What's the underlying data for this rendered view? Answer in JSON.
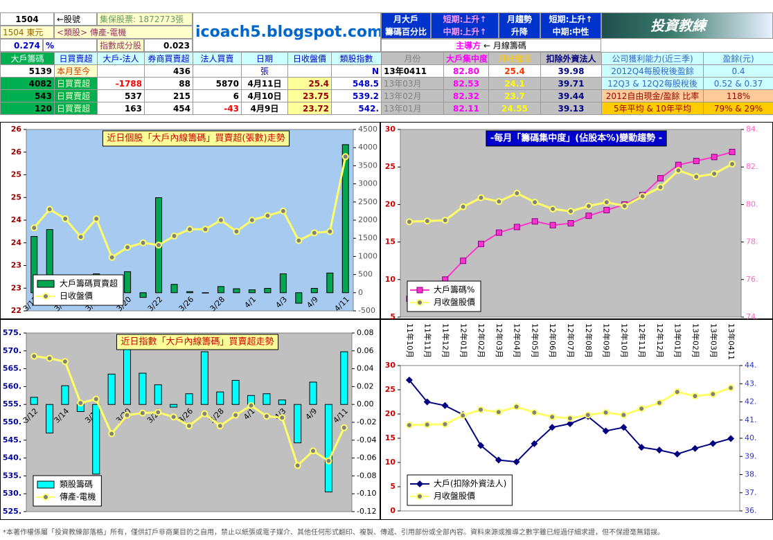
{
  "header": {
    "stock_code": "1504",
    "stock_code_note": "←股號",
    "custody_shares": "集保股票: 1872773張",
    "stock_name": "1504 東元",
    "sector": "<類股> 傳產-電機",
    "weight": "0.274",
    "weight_unit": "%",
    "index_component": "指數成分股",
    "index_weight": "0.023",
    "site": "icoach5.blogspot.com",
    "monthly_holder_label": [
      "月大戶",
      "籌碼百分比"
    ],
    "holder_trend": [
      "短期:上升↑",
      "中期:上升↑"
    ],
    "monthly_trend_label": [
      "月趨勢",
      "升降"
    ],
    "monthly_trend": [
      "短期:上升↑",
      "中期:中性"
    ],
    "logo": "投資教練",
    "leader": "主導方",
    "leader_value": "← 月線籌碼"
  },
  "table": {
    "columns": [
      "大戶籌碼",
      "日買賣超",
      "大戶-法人",
      "券商買賣超",
      "法人買賣",
      "日期",
      "日收盤價",
      "類股指數",
      "月份",
      "大戶集中度",
      "月收盤價",
      "扣除外資法人",
      "公司獲利能力(近三季)",
      "盈餘(元)"
    ],
    "rows": [
      [
        "5139",
        "本月至今",
        null,
        "436",
        null,
        "張",
        null,
        "N",
        "13年0411",
        "82.80",
        "25.4",
        "39.98",
        "2012Q4每股稅後盈餘",
        "0.4"
      ],
      [
        "4082",
        "日買賣超",
        "-1788",
        "88",
        "5870",
        "4月11日",
        "25.4",
        "548.5",
        "13年03月",
        "82.53",
        "24.1",
        "39.71",
        "12Q3 & 12Q2每股稅後",
        "0.52 & 0.37"
      ],
      [
        "543",
        "日買賣超",
        "537",
        "215",
        "6",
        "4月10日",
        "23.75",
        "539.2",
        "13年02月",
        "82.32",
        "23.7",
        "39.44",
        "2012自由現金/盈餘 比率",
        "118%"
      ],
      [
        "120",
        "日買賣超",
        "163",
        "454",
        "-43",
        "4月9日",
        "23.72",
        "542.",
        "13年01月",
        "82.11",
        "24.55",
        "39.13",
        "5年平均 & 10年平均",
        "79% & 29%"
      ]
    ]
  },
  "chart_data": [
    {
      "type": "bar-line",
      "title": "近日個股「大戶內線籌碼」買賣超(張數)走勢",
      "categories": [
        "3/12",
        null,
        "3/14",
        null,
        "3/18",
        null,
        "3/20",
        null,
        "3/22",
        null,
        "3/26",
        null,
        "3/28",
        null,
        "4/1",
        null,
        "4/3",
        null,
        "4/9",
        null,
        "4/11"
      ],
      "ylim": [
        22,
        26
      ],
      "yticks": [
        22,
        {
          "value": 22.5,
          "label": "23"
        },
        23,
        {
          "value": 23.5,
          "label": "24"
        },
        24,
        {
          "value": 24.5,
          "label": "25"
        },
        25,
        {
          "value": 25.5,
          "label": "26"
        },
        26
      ],
      "y2lim": [
        -500,
        4500
      ],
      "y2ticks": [
        -500,
        0,
        500,
        1000,
        1500,
        2000,
        2500,
        3000,
        3500,
        4000,
        4500
      ],
      "series": [
        {
          "name": "大戶籌碼買賣超",
          "type": "bar",
          "axis": "y2",
          "color": "#00a651",
          "values": [
            1550,
            1740,
            40,
            100,
            520,
            30,
            580,
            -130,
            2620,
            230,
            30,
            -10,
            170,
            110,
            80,
            120,
            520,
            -290,
            120,
            543,
            4082
          ]
        },
        {
          "name": "日收盤價",
          "type": "line",
          "color": "#ffff66",
          "marker": "circle",
          "values": [
            23.83,
            24.24,
            24.03,
            23.63,
            24.03,
            23.18,
            23.4,
            23.5,
            23.45,
            23.65,
            23.8,
            23.8,
            24.0,
            23.75,
            24.0,
            24.1,
            24.2,
            23.55,
            23.72,
            23.75,
            25.4
          ]
        }
      ],
      "legend": "lower left"
    },
    {
      "type": "line",
      "title": "-每月「籌碼集中度」(佔股本%)變動趨勢 -",
      "ylim": [
        5,
        30
      ],
      "yticks": [
        5,
        10,
        15,
        20,
        25,
        30
      ],
      "y2lim": [
        74,
        84
      ],
      "y2ticks": [
        {
          "value": 74,
          "label": "74."
        },
        {
          "value": 76,
          "label": "76."
        },
        {
          "value": 78,
          "label": "78."
        },
        {
          "value": 80,
          "label": "80."
        },
        {
          "value": 82,
          "label": "82."
        },
        {
          "value": 84,
          "label": "84."
        }
      ],
      "series": [
        {
          "name": "大戶籌碼%",
          "type": "line",
          "axis": "y2",
          "color": "#ff33cc",
          "marker": "square",
          "values": [
            74.98,
            75.4,
            76.0,
            77.0,
            77.9,
            78.5,
            78.8,
            79.1,
            78.9,
            79.0,
            79.4,
            79.7,
            80.0,
            80.5,
            81.4,
            82.11,
            82.32,
            82.53,
            82.8
          ]
        },
        {
          "name": "月收盤股價",
          "type": "line",
          "color": "#ffff66",
          "marker": "circle",
          "values": [
            17.7,
            17.8,
            17.9,
            19.7,
            20.9,
            20.4,
            21.5,
            20.3,
            19.4,
            19.1,
            19.8,
            20.3,
            19.8,
            21.1,
            22.3,
            24.55,
            23.7,
            24.1,
            25.4
          ]
        }
      ],
      "legend": "lower left"
    },
    {
      "type": "bar-line",
      "title": "近日指數「大戶內線籌碼」買賣超走勢",
      "categories": [
        "3/12",
        null,
        "3/14",
        null,
        "3/18",
        null,
        "3/20",
        null,
        "3/22",
        null,
        "3/26",
        null,
        "3/28",
        null,
        "4/1",
        null,
        "4/3",
        null,
        "4/9",
        null,
        "4/11"
      ],
      "ylim": [
        525,
        575
      ],
      "yticks": [
        {
          "value": 525,
          "label": "525."
        },
        {
          "value": 530,
          "label": "530."
        },
        {
          "value": 535,
          "label": "535."
        },
        {
          "value": 540,
          "label": "540."
        },
        {
          "value": 545,
          "label": "545."
        },
        {
          "value": 550,
          "label": "550."
        },
        {
          "value": 555,
          "label": "555."
        },
        {
          "value": 560,
          "label": "560."
        },
        {
          "value": 565,
          "label": "565."
        },
        {
          "value": 570,
          "label": "570."
        },
        {
          "value": 575,
          "label": "575."
        }
      ],
      "y2lim": [
        -0.12,
        0.08
      ],
      "y2ticks": [
        -0.12,
        {
          "value": -0.1,
          "label": "-0.10"
        },
        -0.08,
        -0.06,
        -0.04,
        -0.02,
        {
          "value": 0,
          "label": "0.00"
        },
        0.02,
        0.04,
        0.06,
        0.08
      ],
      "series": [
        {
          "name": "類股籌碼",
          "type": "bar",
          "axis": "y2",
          "color": "#00ffff",
          "values": [
            0.008,
            -0.032,
            0.021,
            -0.008,
            -0.078,
            0.034,
            0.069,
            0.035,
            0.022,
            -0.003,
            0.012,
            0.059,
            0.014,
            0.027,
            0.01,
            0.012,
            0.005,
            -0.043,
            0.025,
            -0.098,
            0.059
          ]
        },
        {
          "name": "傳產-電機",
          "type": "line",
          "color": "#ffff66",
          "marker": "circle",
          "values": [
            568.5,
            567.9,
            567,
            555.4,
            556.5,
            546.8,
            552,
            552.6,
            552.8,
            551.5,
            549,
            552.4,
            549,
            552,
            554.7,
            551.7,
            551.3,
            537.9,
            542,
            539.2,
            548.5
          ]
        }
      ],
      "legend": "lower left"
    },
    {
      "type": "line",
      "categories": [
        "11年10月",
        "11年11月",
        "11年12月",
        "12年01月",
        "12年02月",
        "12年03月",
        "12年04月",
        "12年05月",
        "12年06月",
        "12年07月",
        "12年08月",
        "12年09月",
        "12年10月",
        "12年11月",
        "12年12月",
        "13年01月",
        "13年02月",
        "13年03月",
        "13年0411"
      ],
      "ylim": [
        0,
        30
      ],
      "yticks": [
        0,
        5,
        10,
        15,
        20,
        25,
        30
      ],
      "y2lim": [
        36,
        44
      ],
      "y2ticks": [
        {
          "value": 36,
          "label": "36."
        },
        {
          "value": 37,
          "label": "37."
        },
        {
          "value": 38,
          "label": "38."
        },
        {
          "value": 39,
          "label": "39."
        },
        {
          "value": 40,
          "label": "40."
        },
        {
          "value": 41,
          "label": "41."
        },
        {
          "value": 42,
          "label": "42."
        },
        {
          "value": 43,
          "label": "43."
        },
        {
          "value": 44,
          "label": "44."
        }
      ],
      "series": [
        {
          "name": "大戶(扣除外資法人)",
          "type": "line",
          "axis": "y2",
          "color": "#000080",
          "marker": "diamond",
          "values": [
            43.2,
            42.0,
            41.8,
            41.3,
            39.6,
            38.8,
            38.7,
            39.7,
            40.6,
            40.8,
            41.2,
            40.4,
            40.6,
            39.5,
            39.35,
            39.13,
            39.44,
            39.71,
            39.98
          ]
        },
        {
          "name": "月收盤股價",
          "type": "line",
          "color": "#ffff66",
          "marker": "circle",
          "values": [
            17.7,
            17.8,
            17.9,
            19.7,
            20.9,
            20.4,
            21.5,
            20.3,
            19.4,
            19.1,
            19.8,
            20.3,
            19.8,
            21.1,
            22.3,
            24.55,
            23.7,
            24.1,
            25.4
          ]
        }
      ],
      "legend": "lower left"
    }
  ],
  "footer": "*本著作權係屬「投資教練部落格」所有，僅供訂戶非商業目的之自用，禁止以紙張或電子媒介、其他任何形式翻印、複製、傳遞、引用部份或全部內容。資料來源或推導之數字雖已經過仔細求證，但不保證毫無錯誤。"
}
